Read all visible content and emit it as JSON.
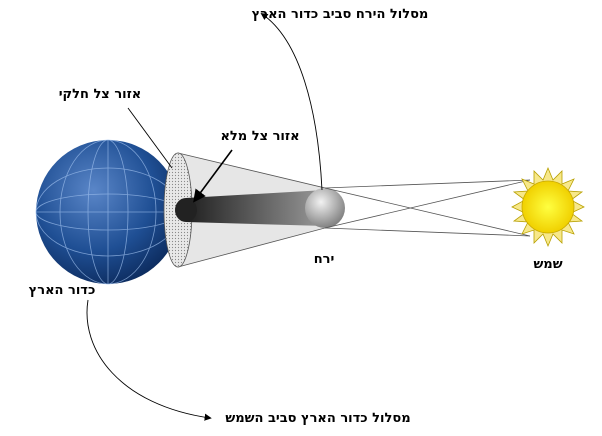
{
  "labels": {
    "moon_orbit": "מסלול הירח סביב כדור הארץ",
    "penumbra": "אזור צל חלקי",
    "umbra": "אזור צל מלא",
    "moon": "ירח",
    "sun": "שמש",
    "earth": "כדור הארץ",
    "earth_orbit": "מסלול כדור הארץ סביב השמש"
  }
}
